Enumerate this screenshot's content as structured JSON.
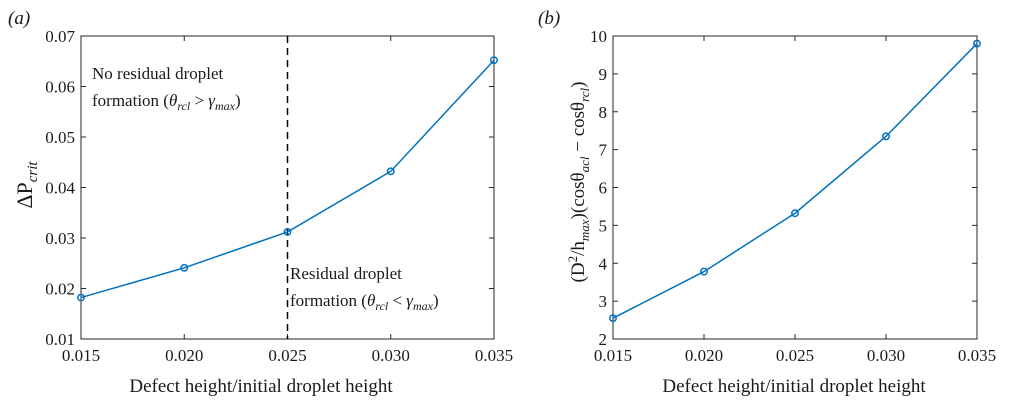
{
  "chart_data": [
    {
      "type": "line",
      "panel_label": "(a)",
      "xlabel": "Defect height/initial droplet height",
      "ylabel_base": "ΔP",
      "ylabel_sub": "crit",
      "xlim": [
        0.015,
        0.035
      ],
      "ylim": [
        0.01,
        0.07
      ],
      "x_ticks": [
        "0.015",
        "0.020",
        "0.025",
        "0.030",
        "0.035"
      ],
      "y_ticks": [
        "0.01",
        "0.02",
        "0.03",
        "0.04",
        "0.05",
        "0.06",
        "0.07"
      ],
      "x": [
        0.015,
        0.02,
        0.025,
        0.03,
        0.035
      ],
      "series": [
        {
          "values": [
            0.0182,
            0.0241,
            0.0312,
            0.0432,
            0.0652
          ],
          "color": "#0072bd"
        }
      ],
      "reference_line": {
        "x": 0.025,
        "style": "dashed",
        "color": "#000000"
      },
      "annotations": {
        "left": {
          "line1": "No residual droplet",
          "line2_text": "formation (",
          "theta": "θ",
          "sub1": "rcl",
          "relation": " > ",
          "gamma": "γ",
          "sub2": "max",
          "close": ")"
        },
        "right": {
          "line1": "Residual droplet",
          "line2_text": "formation (",
          "theta": "θ",
          "sub1": "rcl",
          "relation": " < ",
          "gamma": "γ",
          "sub2": "max",
          "close": ")"
        }
      }
    },
    {
      "type": "line",
      "panel_label": "(b)",
      "xlabel": "Defect height/initial droplet height",
      "ylabel_parts": {
        "p1": "(D",
        "sup": "2",
        "p2": "/h",
        "sub1": "max",
        "p3": ")(cosθ",
        "sub2": "acl",
        "p4": " − cosθ",
        "sub3": "rcl",
        "p5": ")"
      },
      "xlim": [
        0.015,
        0.035
      ],
      "ylim": [
        2,
        10
      ],
      "x_ticks": [
        "0.015",
        "0.020",
        "0.025",
        "0.030",
        "0.035"
      ],
      "y_ticks": [
        "2",
        "3",
        "4",
        "5",
        "6",
        "7",
        "8",
        "9",
        "10"
      ],
      "x": [
        0.015,
        0.02,
        0.025,
        0.03,
        0.035
      ],
      "series": [
        {
          "values": [
            2.55,
            3.78,
            5.32,
            7.35,
            9.8
          ],
          "color": "#0072bd"
        }
      ]
    }
  ]
}
